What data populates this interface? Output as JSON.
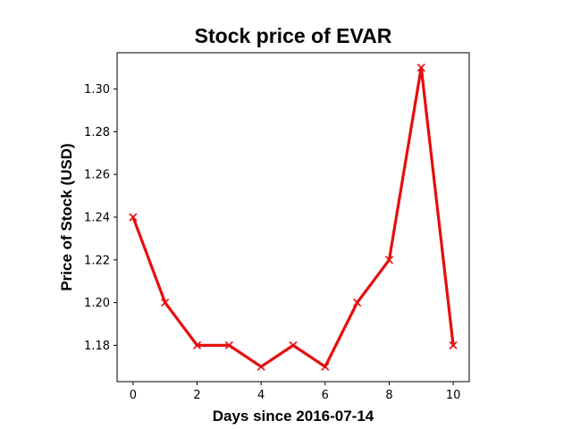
{
  "chart_data": {
    "type": "line",
    "title": "Stock price of EVAR",
    "xlabel": "Days since 2016-07-14",
    "ylabel": "Price of Stock (USD)",
    "x": [
      0,
      1,
      2,
      3,
      4,
      5,
      6,
      7,
      8,
      9,
      10
    ],
    "series": [
      {
        "values": [
          1.24,
          1.2,
          1.18,
          1.18,
          1.17,
          1.18,
          1.17,
          1.2,
          1.22,
          1.31,
          1.18
        ],
        "color": "#e80d0d",
        "marker": "x"
      }
    ],
    "xlim": [
      -0.5,
      10.5
    ],
    "ylim": [
      1.163,
      1.317
    ],
    "xticks": [
      0,
      2,
      4,
      6,
      8,
      10
    ],
    "yticks": [
      1.18,
      1.2,
      1.22,
      1.24,
      1.26,
      1.28,
      1.3
    ],
    "ytick_labels": [
      "1.18",
      "1.20",
      "1.22",
      "1.24",
      "1.26",
      "1.28",
      "1.30"
    ],
    "grid": false,
    "legend": "none"
  }
}
